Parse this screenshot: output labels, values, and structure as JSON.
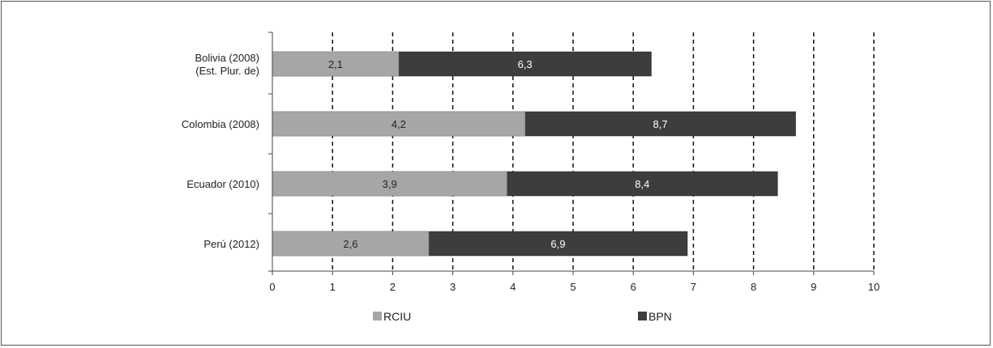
{
  "chart_data": {
    "type": "bar",
    "orientation": "horizontal",
    "stacked": false,
    "categories": [
      [
        "Bolivia (2008)",
        "(Est. Plur. de)"
      ],
      [
        "Colombia (2008)"
      ],
      [
        "Ecuador (2010)"
      ],
      [
        "Perú (2012)"
      ]
    ],
    "series": [
      {
        "name": "RCIU",
        "color": "#a6a6a6",
        "values": [
          2.1,
          4.2,
          3.9,
          2.6
        ],
        "labels": [
          "2,1",
          "4,2",
          "3,9",
          "2,6"
        ]
      },
      {
        "name": "BPN",
        "color": "#3d3d3d",
        "values": [
          6.3,
          8.7,
          8.4,
          6.9
        ],
        "labels": [
          "6,3",
          "8,7",
          "8,4",
          "6,9"
        ]
      }
    ],
    "xlim": [
      0,
      10
    ],
    "xticks": [
      "0",
      "1",
      "2",
      "3",
      "4",
      "5",
      "6",
      "7",
      "8",
      "9",
      "10"
    ],
    "grid": "vertical dashed",
    "legend": "bottom",
    "title": "",
    "xlabel": "",
    "ylabel": ""
  }
}
